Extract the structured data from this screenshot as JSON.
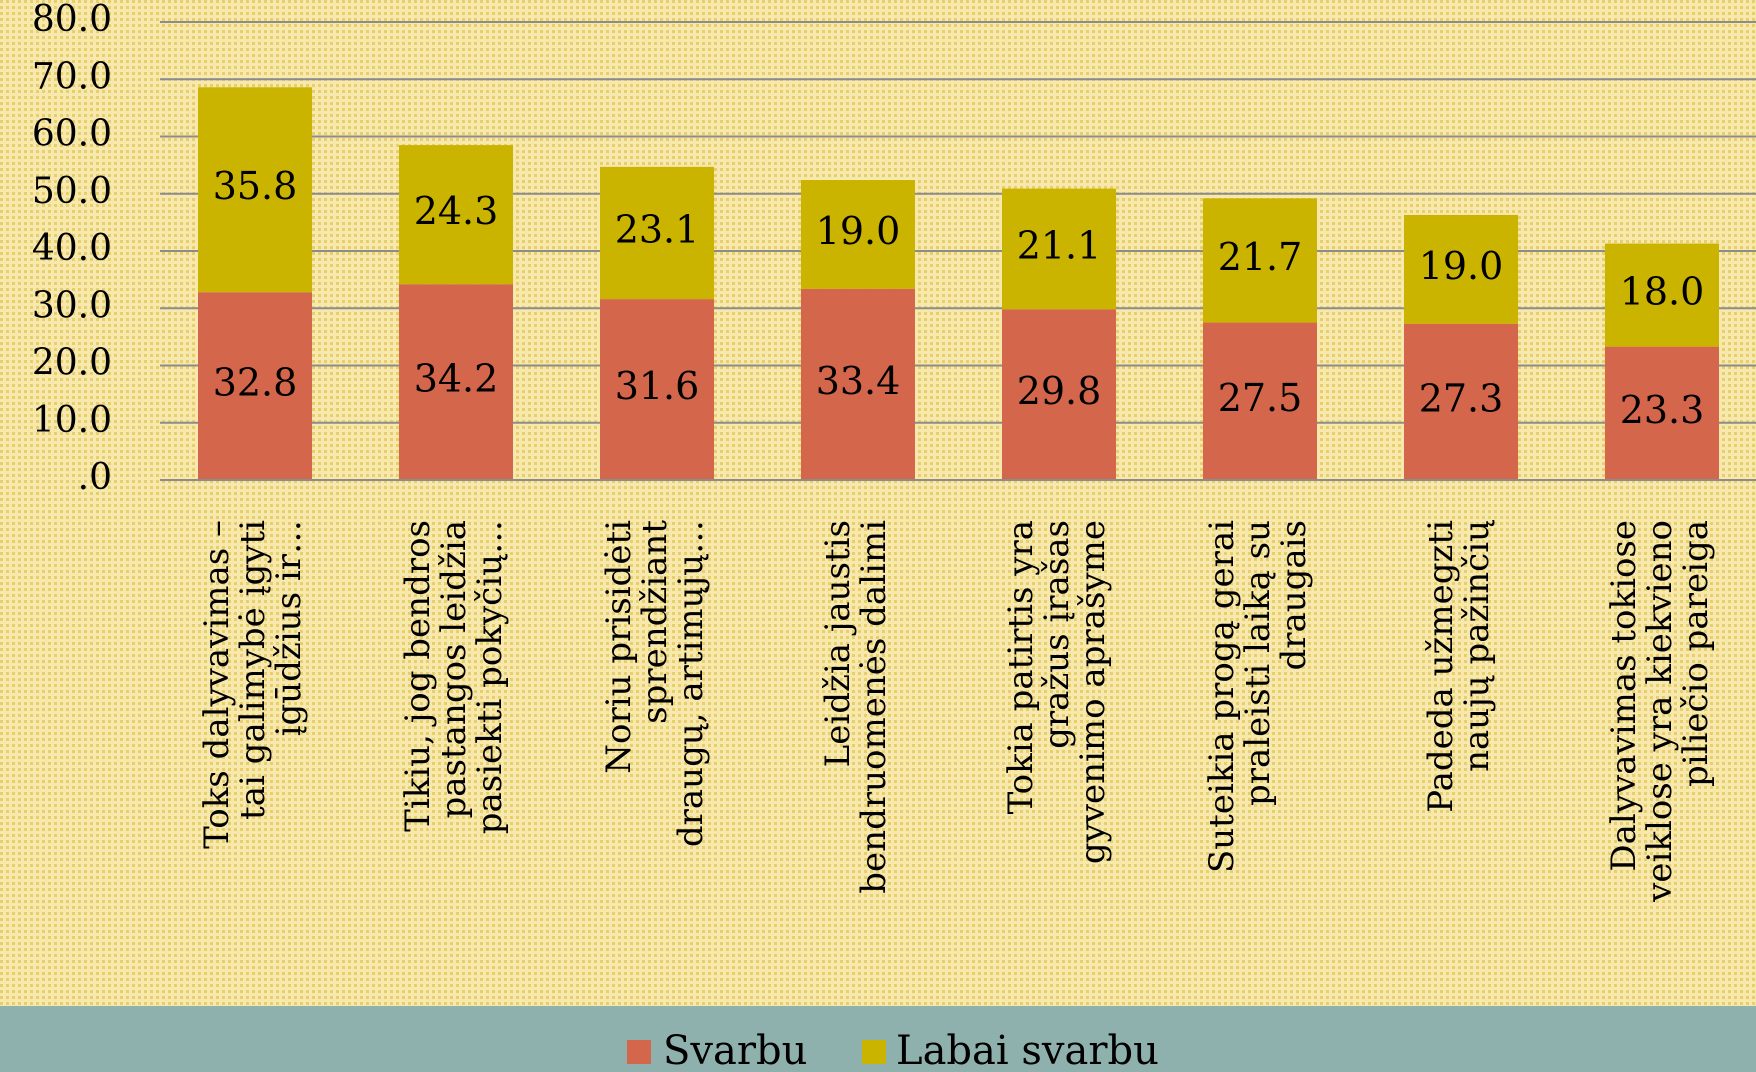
{
  "chart_data": {
    "type": "stacked_bar",
    "categories": [
      "Toks dalyvavimas –\ntai galimybė įgyti\nįgūdžius ir…",
      "Tikiu, jog bendros\npastangos leidžia\npasiekti pokyčių…",
      "Noriu prisidėti\nsprendžiant\ndraugų, artimųjų…",
      "Leidžia jaustis\nbendruomenės dalimi",
      "Tokia patirtis  yra\ngražus įrašas\ngyvenimo aprašyme",
      "Suteikia progą gerai\npraleisti laiką su\ndraugais",
      "Padeda užmegzti\nnaujų pažinčių",
      "Dalyvavimas tokiose\nveiklose yra kiekvieno\npiliečio pareiga"
    ],
    "series": [
      {
        "name": "Svarbu",
        "color": "#d3664b",
        "values": [
          32.8,
          34.2,
          31.6,
          33.4,
          29.8,
          27.5,
          27.3,
          23.3
        ],
        "value_labels": [
          "32.8",
          "34.2",
          "31.6",
          "33.4",
          "29.8",
          "27.5",
          "27.3",
          "23.3"
        ]
      },
      {
        "name": "Labai svarbu",
        "color": "#cbb400",
        "values": [
          35.8,
          24.3,
          23.1,
          19.0,
          21.1,
          21.7,
          19.0,
          18.0
        ],
        "value_labels": [
          "35.8",
          "24.3",
          "23.1",
          "19.0",
          "21.1",
          "21.7",
          "19.0",
          "18.0"
        ]
      }
    ],
    "ylim": [
      0,
      80
    ],
    "yticks": [
      {
        "value": 0,
        "label": ".0"
      },
      {
        "value": 10,
        "label": "10.0"
      },
      {
        "value": 20,
        "label": "20.0"
      },
      {
        "value": 30,
        "label": "30.0"
      },
      {
        "value": 40,
        "label": "40.0"
      },
      {
        "value": 50,
        "label": "50.0"
      },
      {
        "value": 60,
        "label": "60.0"
      },
      {
        "value": 70,
        "label": "70.0"
      },
      {
        "value": 80,
        "label": "80.0"
      }
    ],
    "grid": true,
    "legend": "bottom"
  }
}
